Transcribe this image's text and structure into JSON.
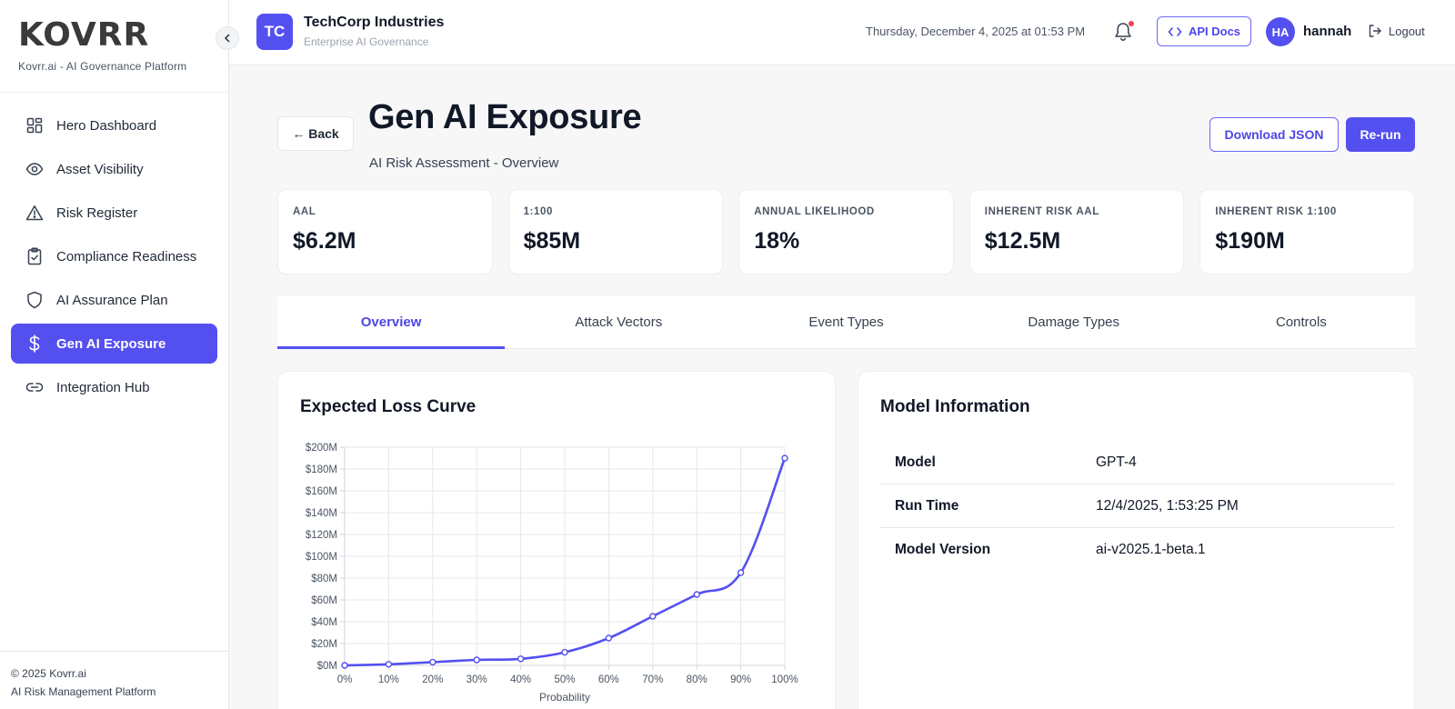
{
  "brand": {
    "logo": "KOVRR",
    "subtitle": "Kovrr.ai - AI Governance Platform"
  },
  "sidebar": {
    "items": [
      {
        "label": "Hero Dashboard",
        "icon": "grid-icon"
      },
      {
        "label": "Asset Visibility",
        "icon": "eye-icon"
      },
      {
        "label": "Risk Register",
        "icon": "warning-icon"
      },
      {
        "label": "Compliance Readiness",
        "icon": "clipboard-check-icon"
      },
      {
        "label": "AI Assurance Plan",
        "icon": "shield-icon"
      },
      {
        "label": "Gen AI Exposure",
        "icon": "dollar-icon",
        "active": true
      },
      {
        "label": "Integration Hub",
        "icon": "link-icon"
      }
    ],
    "footer": {
      "copyright": "© 2025 Kovrr.ai",
      "tagline": "AI Risk Management Platform"
    }
  },
  "header": {
    "org_initials": "TC",
    "org_name": "TechCorp Industries",
    "org_sub": "Enterprise AI Governance",
    "datetime": "Thursday, December 4, 2025 at 01:53 PM",
    "api_docs_label": "API Docs",
    "user_initials": "HA",
    "username": "hannah",
    "logout_label": "Logout"
  },
  "page": {
    "back_label": "← Back",
    "title": "Gen AI Exposure",
    "subtitle": "AI Risk Assessment - Overview",
    "download_label": "Download JSON",
    "rerun_label": "Re-run"
  },
  "metrics": [
    {
      "label": "AAL",
      "value": "$6.2M"
    },
    {
      "label": "1:100",
      "value": "$85M"
    },
    {
      "label": "ANNUAL LIKELIHOOD",
      "value": "18%"
    },
    {
      "label": "INHERENT RISK AAL",
      "value": "$12.5M"
    },
    {
      "label": "INHERENT RISK 1:100",
      "value": "$190M"
    }
  ],
  "tabs": [
    "Overview",
    "Attack Vectors",
    "Event Types",
    "Damage Types",
    "Controls"
  ],
  "chart_card": {
    "title": "Expected Loss Curve"
  },
  "info_card": {
    "title": "Model Information",
    "rows": [
      {
        "key": "Model",
        "value": "GPT-4"
      },
      {
        "key": "Run Time",
        "value": "12/4/2025, 1:53:25 PM"
      },
      {
        "key": "Model Version",
        "value": "ai-v2025.1-beta.1"
      }
    ]
  },
  "colors": {
    "accent": "#5450f0",
    "notification": "#ef4444"
  },
  "chart_data": {
    "type": "line",
    "title": "Expected Loss Curve",
    "xlabel": "Probability",
    "ylabel": "",
    "x": [
      0,
      10,
      20,
      30,
      40,
      50,
      60,
      70,
      80,
      90,
      100
    ],
    "x_tick_labels": [
      "0%",
      "10%",
      "20%",
      "30%",
      "40%",
      "50%",
      "60%",
      "70%",
      "80%",
      "90%",
      "100%"
    ],
    "y_tick_labels": [
      "$0M",
      "$20M",
      "$40M",
      "$60M",
      "$80M",
      "$100M",
      "$120M",
      "$140M",
      "$160M",
      "$180M",
      "$200M"
    ],
    "series": [
      {
        "name": "Expected Loss",
        "values": [
          0,
          1,
          3,
          5,
          6,
          12,
          25,
          45,
          65,
          85,
          190
        ]
      }
    ],
    "ylim": [
      0,
      200
    ],
    "xlim": [
      0,
      100
    ],
    "grid": true
  }
}
